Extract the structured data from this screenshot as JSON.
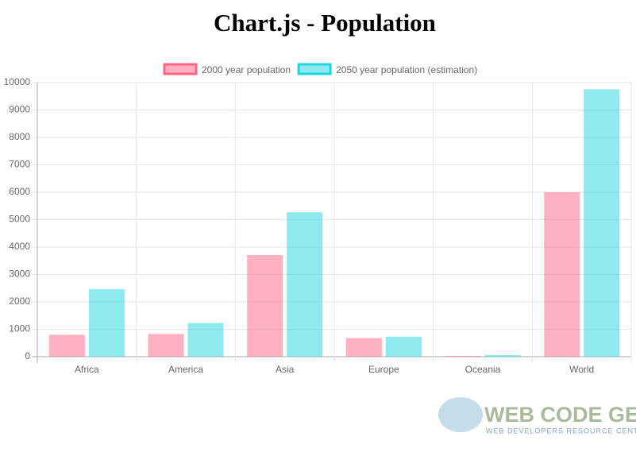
{
  "chart_data": {
    "type": "bar",
    "title": "Chart.js - Population",
    "categories": [
      "Africa",
      "America",
      "Asia",
      "Europe",
      "Oceania",
      "World"
    ],
    "series": [
      {
        "name": "2000 year population",
        "color": "#ff6384",
        "values": [
          800,
          830,
          3710,
          680,
          30,
          6000
        ]
      },
      {
        "name": "2050 year population (estimation)",
        "color": "#1fd5e0",
        "values": [
          2460,
          1230,
          5270,
          730,
          60,
          9760
        ]
      }
    ],
    "ylim": [
      0,
      10000
    ],
    "yticks": [
      0,
      1000,
      2000,
      3000,
      4000,
      5000,
      6000,
      7000,
      8000,
      9000,
      10000
    ],
    "grid": true
  },
  "watermark": {
    "title": "WEB CODE GEEKS",
    "subtitle": "WEB DEVELOPERS RESOURCE CENTER"
  }
}
